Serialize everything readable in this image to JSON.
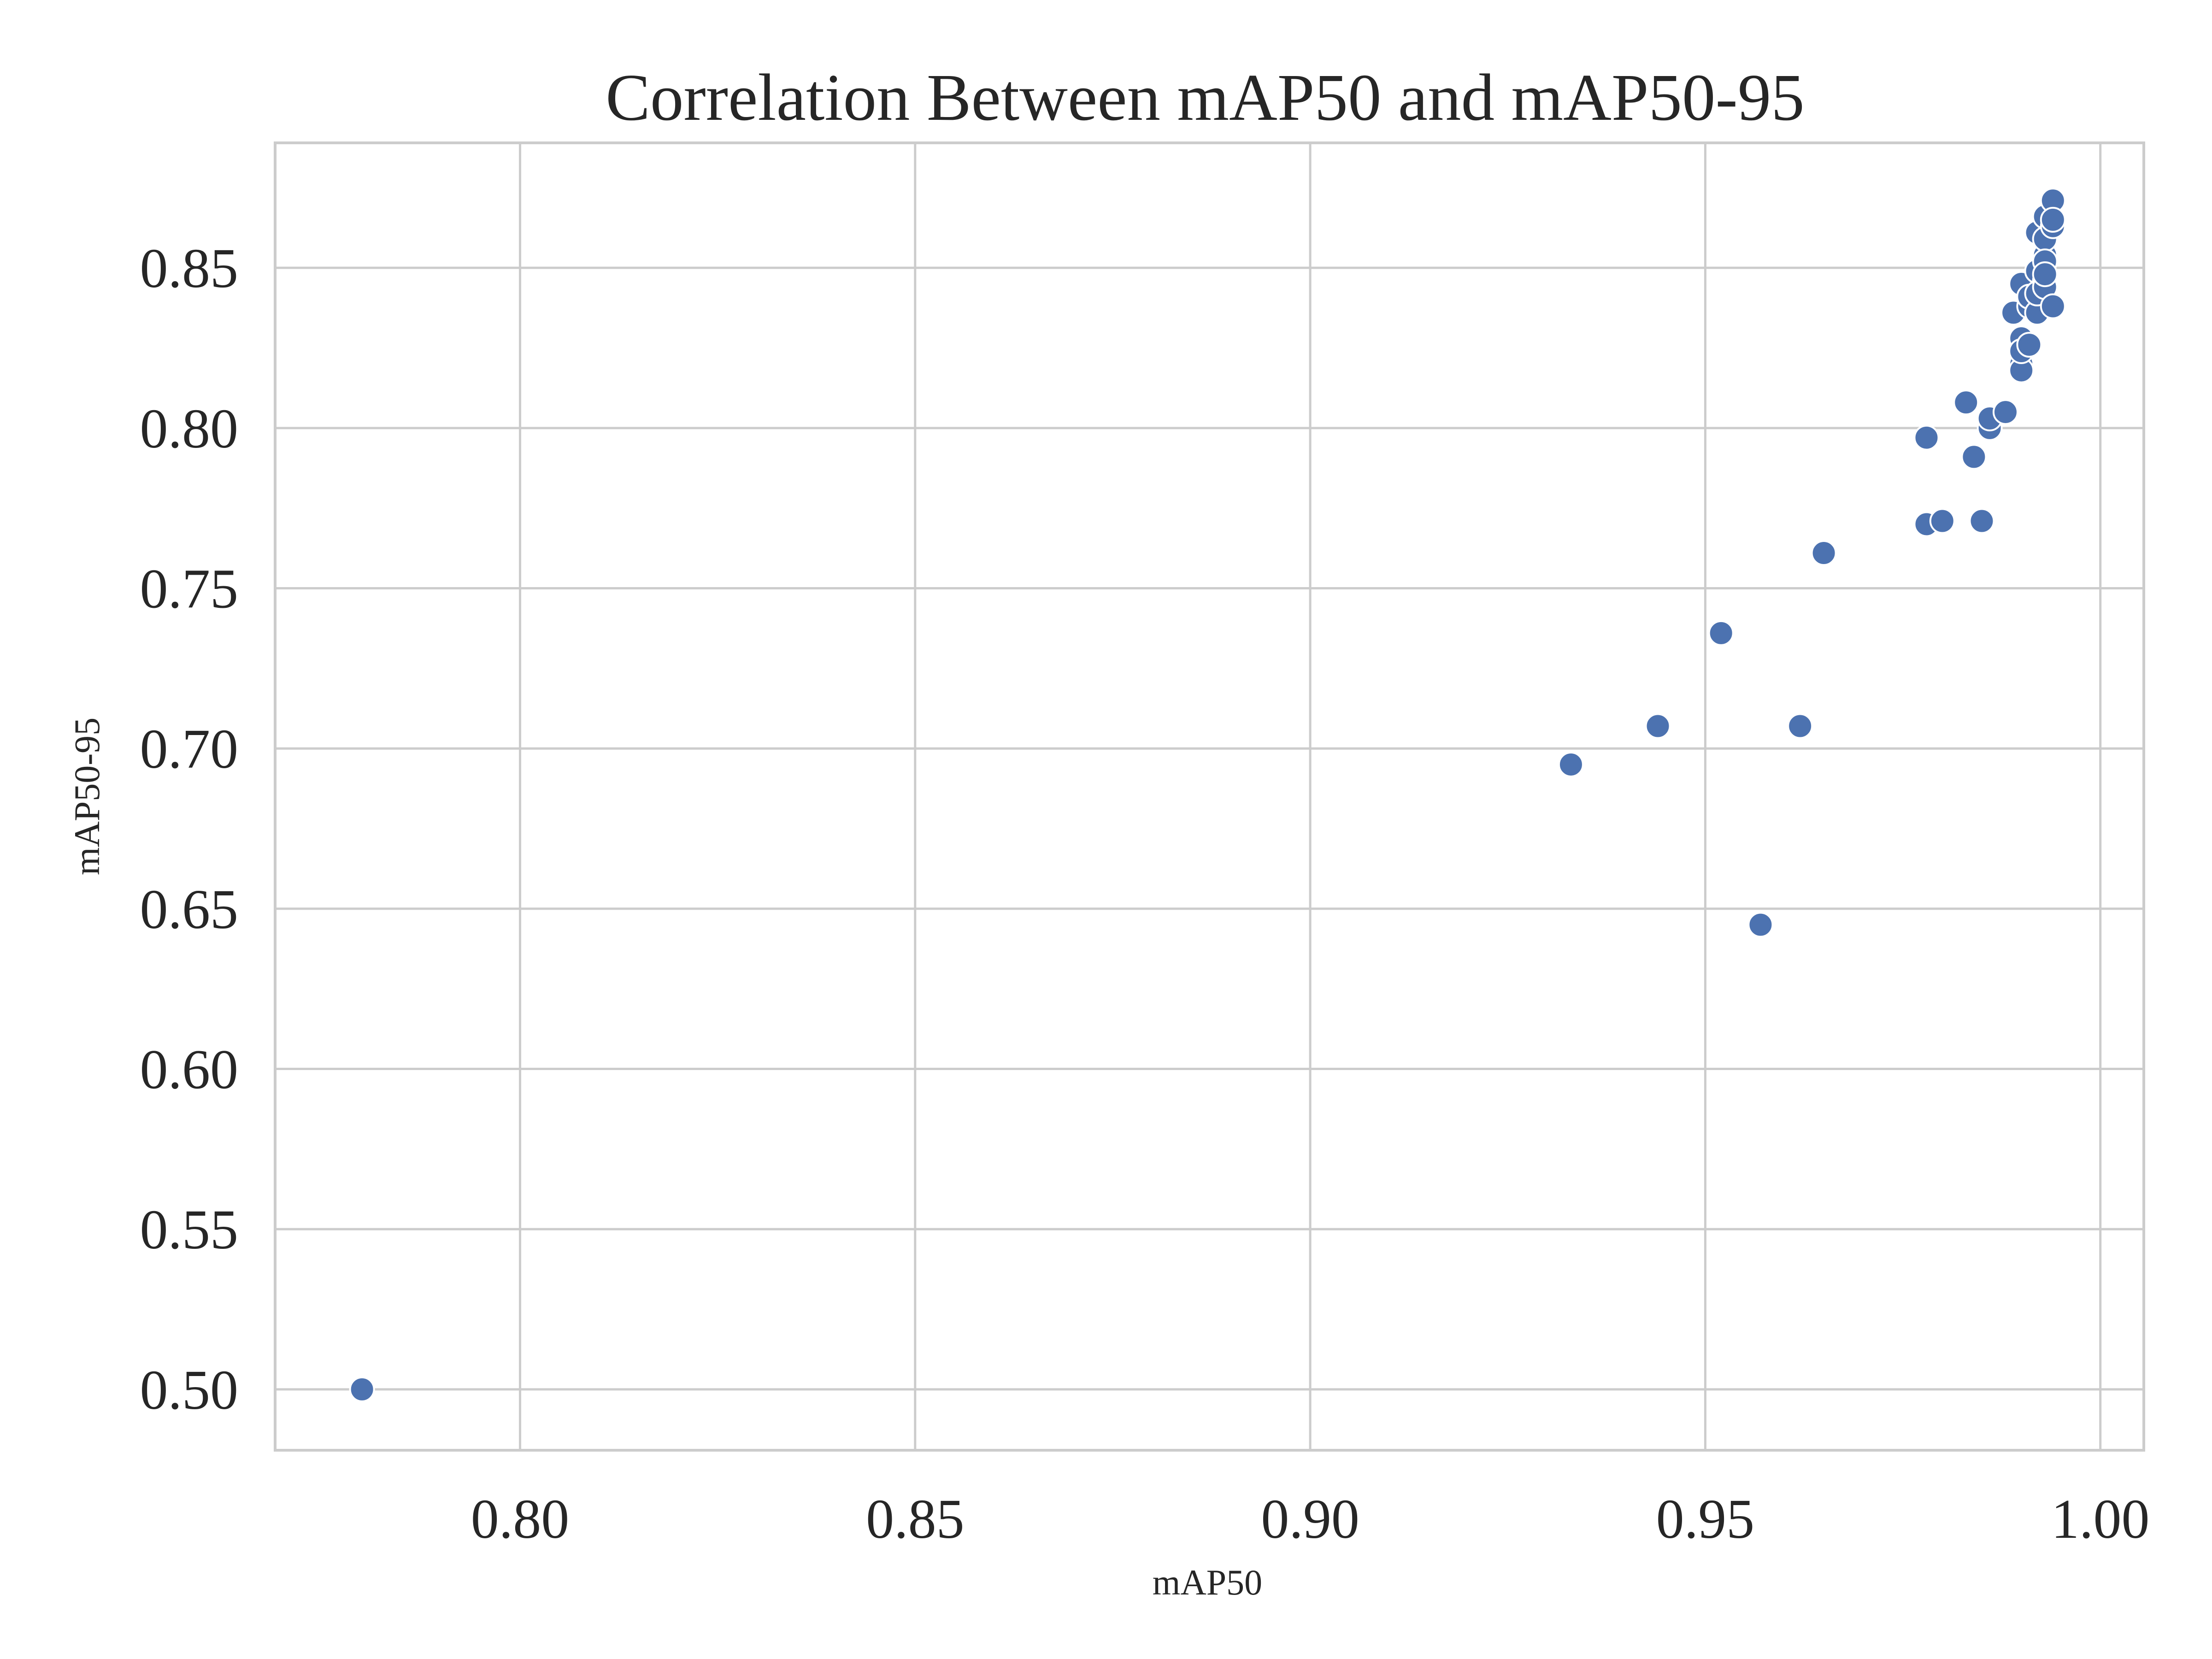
{
  "chart_data": {
    "type": "scatter",
    "title": "Correlation Between mAP50 and mAP50-95",
    "xlabel": "mAP50",
    "ylabel": "mAP50-95",
    "xlim": [
      0.769,
      1.0055
    ],
    "ylim": [
      0.481,
      0.889
    ],
    "xticks": [
      "0.80",
      "0.85",
      "0.90",
      "0.95",
      "1.00"
    ],
    "yticks": [
      "0.50",
      "0.55",
      "0.60",
      "0.65",
      "0.70",
      "0.75",
      "0.80",
      "0.85"
    ],
    "grid": true,
    "color": "#4c72b0",
    "points": [
      {
        "x": 0.78,
        "y": 0.5
      },
      {
        "x": 0.933,
        "y": 0.695
      },
      {
        "x": 0.944,
        "y": 0.707
      },
      {
        "x": 0.952,
        "y": 0.736
      },
      {
        "x": 0.957,
        "y": 0.645
      },
      {
        "x": 0.962,
        "y": 0.707
      },
      {
        "x": 0.965,
        "y": 0.761
      },
      {
        "x": 0.978,
        "y": 0.797
      },
      {
        "x": 0.978,
        "y": 0.77
      },
      {
        "x": 0.98,
        "y": 0.771
      },
      {
        "x": 0.983,
        "y": 0.808
      },
      {
        "x": 0.984,
        "y": 0.791
      },
      {
        "x": 0.985,
        "y": 0.771
      },
      {
        "x": 0.986,
        "y": 0.8
      },
      {
        "x": 0.986,
        "y": 0.803
      },
      {
        "x": 0.988,
        "y": 0.805
      },
      {
        "x": 0.989,
        "y": 0.836
      },
      {
        "x": 0.99,
        "y": 0.845
      },
      {
        "x": 0.99,
        "y": 0.828
      },
      {
        "x": 0.99,
        "y": 0.82
      },
      {
        "x": 0.99,
        "y": 0.818
      },
      {
        "x": 0.99,
        "y": 0.824
      },
      {
        "x": 0.991,
        "y": 0.838
      },
      {
        "x": 0.991,
        "y": 0.841
      },
      {
        "x": 0.991,
        "y": 0.826
      },
      {
        "x": 0.992,
        "y": 0.836
      },
      {
        "x": 0.992,
        "y": 0.849
      },
      {
        "x": 0.992,
        "y": 0.861
      },
      {
        "x": 0.992,
        "y": 0.842
      },
      {
        "x": 0.993,
        "y": 0.846
      },
      {
        "x": 0.993,
        "y": 0.854
      },
      {
        "x": 0.993,
        "y": 0.859
      },
      {
        "x": 0.993,
        "y": 0.866
      },
      {
        "x": 0.993,
        "y": 0.852
      },
      {
        "x": 0.993,
        "y": 0.844
      },
      {
        "x": 0.994,
        "y": 0.838
      },
      {
        "x": 0.994,
        "y": 0.863
      },
      {
        "x": 0.994,
        "y": 0.871
      },
      {
        "x": 0.994,
        "y": 0.865
      },
      {
        "x": 0.993,
        "y": 0.848
      }
    ]
  }
}
